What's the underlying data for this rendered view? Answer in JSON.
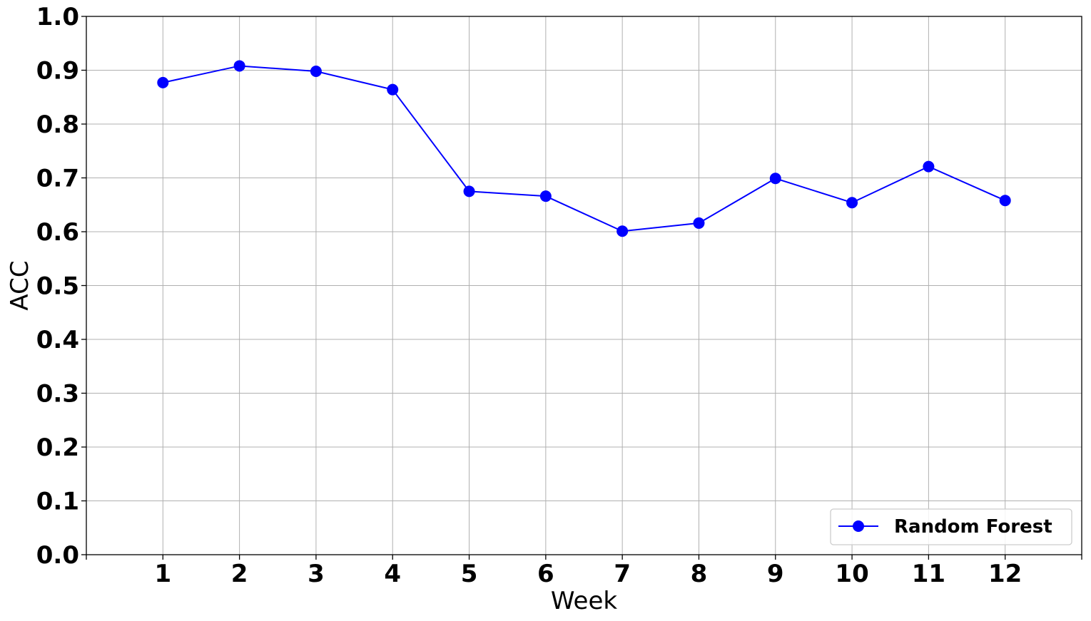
{
  "chart_data": {
    "type": "line",
    "title": "",
    "xlabel": "Week",
    "ylabel": "ACC",
    "x": [
      1,
      2,
      3,
      4,
      5,
      6,
      7,
      8,
      9,
      10,
      11,
      12
    ],
    "xticks": [
      "1",
      "2",
      "3",
      "4",
      "5",
      "6",
      "7",
      "8",
      "9",
      "10",
      "11",
      "12"
    ],
    "yticks": [
      "0.0",
      "0.1",
      "0.2",
      "0.3",
      "0.4",
      "0.5",
      "0.6",
      "0.7",
      "0.8",
      "0.9",
      "1.0"
    ],
    "xlim": [
      0,
      13
    ],
    "ylim": [
      0.0,
      1.0
    ],
    "grid": true,
    "legend_position": "lower-right",
    "series": [
      {
        "name": "Random Forest",
        "color": "#0000ff",
        "marker": "circle",
        "values": [
          0.877,
          0.908,
          0.898,
          0.864,
          0.675,
          0.666,
          0.601,
          0.616,
          0.699,
          0.654,
          0.721,
          0.658
        ]
      }
    ]
  }
}
